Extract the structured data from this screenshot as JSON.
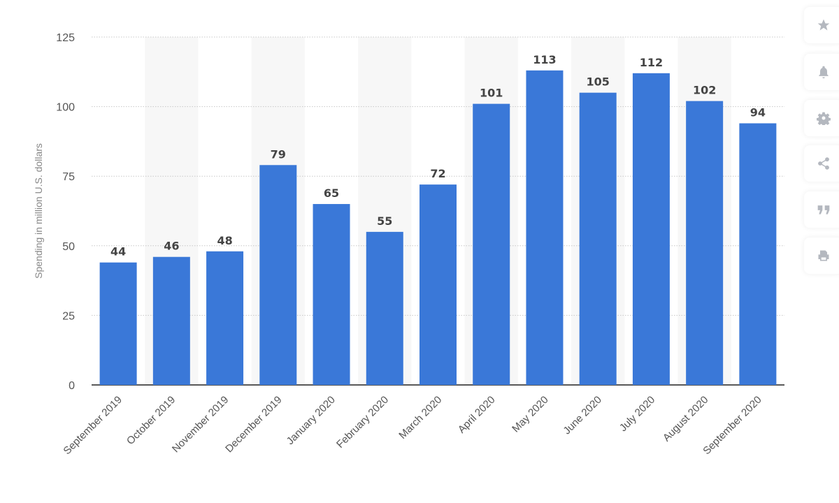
{
  "chart_data": {
    "type": "bar",
    "title": "",
    "xlabel": "",
    "ylabel": "Spending in million U.S. dollars",
    "ylim": [
      0,
      125
    ],
    "yticks": [
      0,
      25,
      50,
      75,
      100,
      125
    ],
    "grid": true,
    "categories": [
      "September 2019",
      "October 2019",
      "November 2019",
      "December 2019",
      "January 2020",
      "February 2020",
      "March 2020",
      "April 2020",
      "May 2020",
      "June 2020",
      "July 2020",
      "August 2020",
      "September 2020"
    ],
    "values": [
      44,
      46,
      48,
      79,
      65,
      55,
      72,
      101,
      113,
      105,
      112,
      102,
      94
    ],
    "bar_color": "#3a78d8",
    "data_labels": true
  },
  "sidebar": {
    "icons": [
      "star-icon",
      "bell-icon",
      "gear-icon",
      "share-icon",
      "quote-icon",
      "print-icon"
    ]
  }
}
